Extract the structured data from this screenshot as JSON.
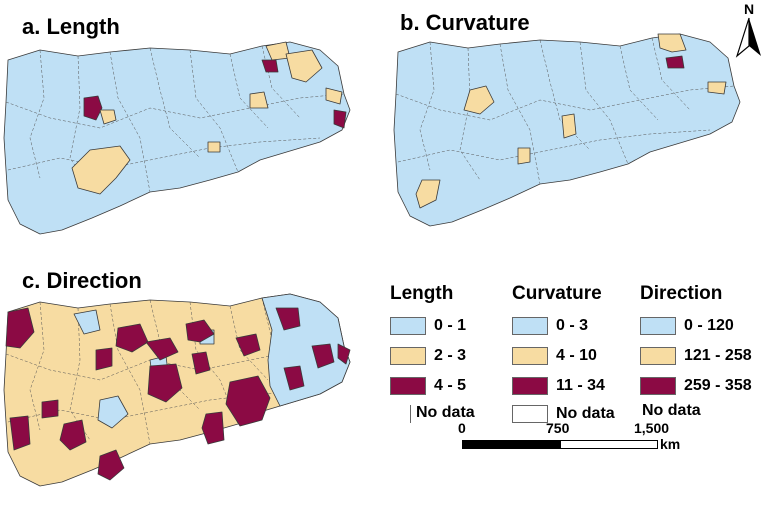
{
  "titles": {
    "a": "a. Length",
    "b": "b. Curvature",
    "c": "c. Direction"
  },
  "legend": {
    "length": {
      "title": "Length",
      "items": [
        {
          "label": "0 - 1",
          "color": "#bfe0f5"
        },
        {
          "label": "2 - 3",
          "color": "#f7dca2"
        },
        {
          "label": "4 - 5",
          "color": "#8b0a44"
        }
      ],
      "nodata": "No data"
    },
    "curvature": {
      "title": "Curvature",
      "items": [
        {
          "label": "0 - 3",
          "color": "#bfe0f5"
        },
        {
          "label": "4 - 10",
          "color": "#f7dca2"
        },
        {
          "label": "11 - 34",
          "color": "#8b0a44"
        }
      ],
      "nodata": "No data"
    },
    "direction": {
      "title": "Direction",
      "items": [
        {
          "label": "0 - 120",
          "color": "#bfe0f5"
        },
        {
          "label": "121 - 258",
          "color": "#f7dca2"
        },
        {
          "label": "259 - 358",
          "color": "#8b0a44"
        }
      ],
      "nodata": "No data"
    }
  },
  "north_arrow": {
    "label": "N"
  },
  "scale_bar": {
    "ticks": [
      "0",
      "750",
      "1,500"
    ],
    "unit": "km"
  },
  "colors": {
    "low": "#bfe0f5",
    "mid": "#f7dca2",
    "high": "#8b0a44",
    "border": "#3a3a3a"
  }
}
